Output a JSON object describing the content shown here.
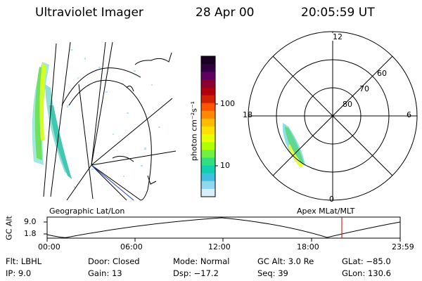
{
  "header": {
    "instrument": "Ultraviolet Imager",
    "date": "28 Apr 00",
    "time": "20:05:59 UT"
  },
  "left_panel": {
    "label": "Geographic Lat/Lon"
  },
  "right_panel": {
    "label": "Apex MLat/MLT",
    "mlt_labels": [
      "12",
      "18",
      "6",
      "0"
    ],
    "lat_labels": [
      "60",
      "70",
      "80"
    ]
  },
  "colorbar": {
    "unit_label": "photon cm⁻²s⁻¹",
    "ticks": [
      "100",
      "10"
    ],
    "colors": [
      "#1a0022",
      "#300040",
      "#600060",
      "#8a0030",
      "#b00010",
      "#d02000",
      "#ff5500",
      "#ff8800",
      "#ffbb00",
      "#ffe000",
      "#e8ff00",
      "#b0ff00",
      "#70f040",
      "#30e080",
      "#10d0b0",
      "#40c0e0",
      "#90d8f0",
      "#d8eef8"
    ]
  },
  "altitude_plot": {
    "ylabel": "GC Alt",
    "yticks": [
      "9.0",
      "1.8"
    ],
    "xticks": [
      "00:00",
      "06:00",
      "12:00",
      "18:00",
      "23:59"
    ],
    "marker_color": "#cc0000"
  },
  "info": {
    "flt": "Flt: LBHL",
    "ip": "IP:  9.0",
    "door": "Door: Closed",
    "gain": "Gain: 13",
    "mode": "Mode: Normal",
    "dsp": "Dsp:  −17.2",
    "gcalt": "GC Alt: 3.0 Re",
    "seq": "Seq: 39",
    "glat": "GLat: −85.0",
    "glon": "GLon: 130.6"
  }
}
